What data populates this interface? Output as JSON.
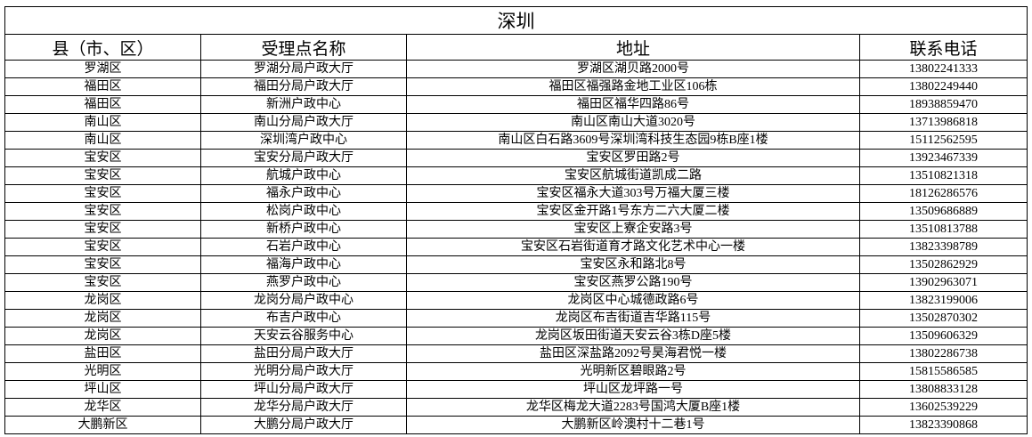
{
  "title": "深圳",
  "table": {
    "headers": [
      "县（市、区）",
      "受理点名称",
      "地址",
      "联系电话"
    ],
    "rows": [
      [
        "罗湖区",
        "罗湖分局户政大厅",
        "罗湖区湖贝路2000号",
        "13802241333"
      ],
      [
        "福田区",
        "福田分局户政大厅",
        "福田区福强路金地工业区106栋",
        "13802249440"
      ],
      [
        "福田区",
        "新洲户政中心",
        "福田区福华四路86号",
        "18938859470"
      ],
      [
        "南山区",
        "南山分局户政大厅",
        "南山区南山大道3020号",
        "13713986818"
      ],
      [
        "南山区",
        "深圳湾户政中心",
        "南山区白石路3609号深圳湾科技生态园9栋B座1楼",
        "15112562595"
      ],
      [
        "宝安区",
        "宝安分局户政大厅",
        "宝安区罗田路2号",
        "13923467339"
      ],
      [
        "宝安区",
        "航城户政中心",
        "宝安区航城街道凯成二路",
        "13510821318"
      ],
      [
        "宝安区",
        "福永户政中心",
        "宝安区福永大道303号万福大厦三楼",
        "18126286576"
      ],
      [
        "宝安区",
        "松岗户政中心",
        "宝安区金开路1号东方二六大厦二楼",
        "13509686889"
      ],
      [
        "宝安区",
        "新桥户政中心",
        "宝安区上寮企安路3号",
        "13510813788"
      ],
      [
        "宝安区",
        "石岩户政中心",
        "宝安区石岩街道育才路文化艺术中心一楼",
        "13823398789"
      ],
      [
        "宝安区",
        "福海户政中心",
        "宝安区永和路北8号",
        "13502862929"
      ],
      [
        "宝安区",
        "燕罗户政中心",
        "宝安区燕罗公路190号",
        "13902963071"
      ],
      [
        "龙岗区",
        "龙岗分局户政中心",
        "龙岗区中心城德政路6号",
        "13823199006"
      ],
      [
        "龙岗区",
        "布吉户政中心",
        "龙岗区布吉街道吉华路115号",
        "13502870302"
      ],
      [
        "龙岗区",
        "天安云谷服务中心",
        "龙岗区坂田街道天安云谷3栋D座5楼",
        "13509606329"
      ],
      [
        "盐田区",
        "盐田分局户政大厅",
        "盐田区深盐路2092号昊海君悦一楼",
        "13802286738"
      ],
      [
        "光明区",
        "光明分局户政大厅",
        "光明新区碧眼路2号",
        "15815586585"
      ],
      [
        "坪山区",
        "坪山分局户政大厅",
        "坪山区龙坪路一号",
        "13808833128"
      ],
      [
        "龙华区",
        "龙华分局户政大厅",
        "龙华区梅龙大道2283号国鸿大厦B座1楼",
        "13602539229"
      ],
      [
        "大鹏新区",
        "大鹏分局户政大厅",
        "大鹏新区岭澳村十二巷1号",
        "13823390868"
      ]
    ]
  }
}
